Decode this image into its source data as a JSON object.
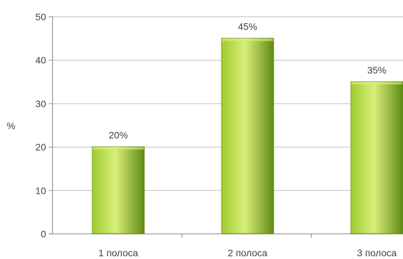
{
  "chart_data": {
    "type": "bar",
    "title": "",
    "xlabel": "",
    "ylabel": "%",
    "categories": [
      "1 полоса",
      "2 полоса",
      "3 полоса"
    ],
    "values": [
      20,
      45,
      35
    ],
    "data_labels": [
      "20%",
      "45%",
      "35%"
    ],
    "ylim": [
      0,
      50
    ],
    "yticks": [
      0,
      10,
      20,
      30,
      40,
      50
    ],
    "grid": true,
    "legend": false
  },
  "colors": {
    "bar_light": "#d8ef7a",
    "bar_mid": "#9fcb2e",
    "bar_dark": "#5e8a12",
    "grid": "#bfbfbf",
    "axis": "#868686",
    "text": "#404040"
  }
}
